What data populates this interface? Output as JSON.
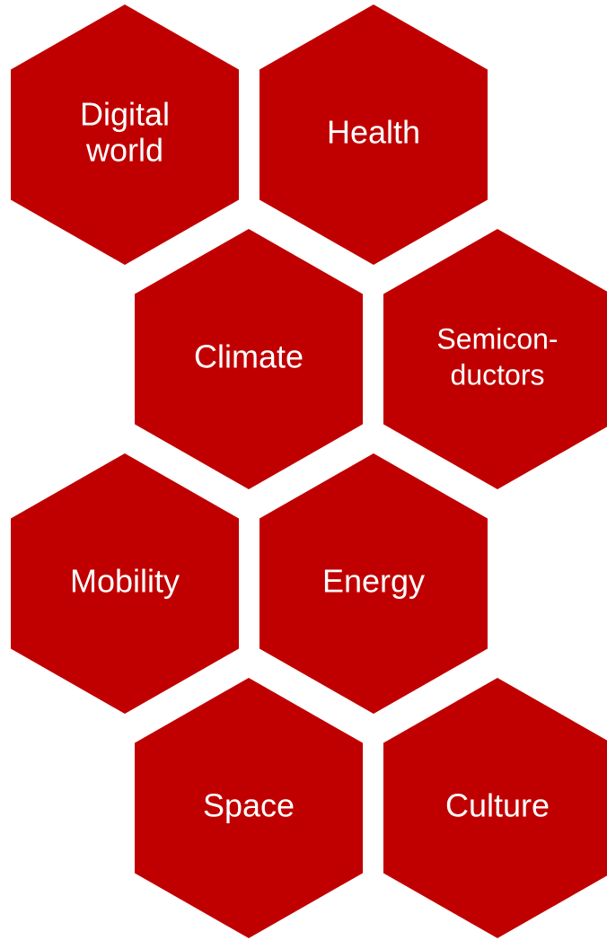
{
  "nodes": [
    {
      "lines": [
        "Digital",
        "world"
      ]
    },
    {
      "lines": [
        "Health"
      ]
    },
    {
      "lines": [
        "Climate"
      ]
    },
    {
      "lines": [
        "Semicon-",
        "ductors"
      ]
    },
    {
      "lines": [
        "Mobility"
      ]
    },
    {
      "lines": [
        "Energy"
      ]
    },
    {
      "lines": [
        "Space"
      ]
    },
    {
      "lines": [
        "Culture"
      ]
    }
  ]
}
